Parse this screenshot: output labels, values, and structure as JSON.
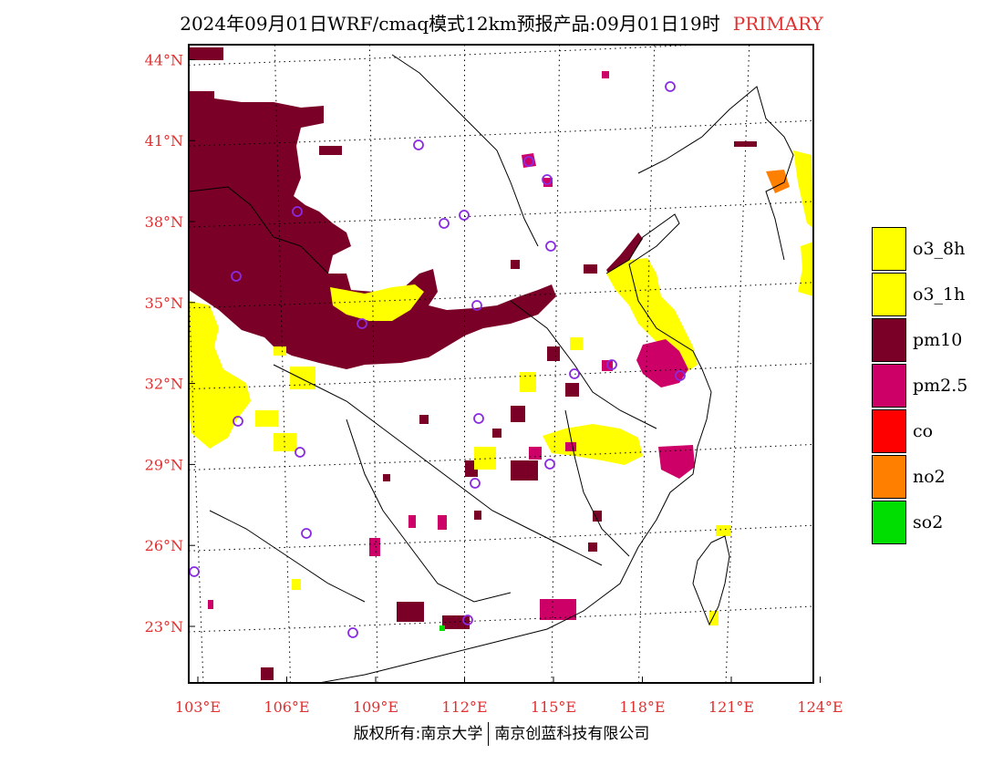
{
  "header": {
    "title": "2024年09月01日WRF/cmaq模式12km预报产品:09月01日19时",
    "tag": "PRIMARY"
  },
  "map": {
    "lat_ticks": [
      {
        "value": 44,
        "label": "44°N"
      },
      {
        "value": 41,
        "label": "41°N"
      },
      {
        "value": 38,
        "label": "38°N"
      },
      {
        "value": 35,
        "label": "35°N"
      },
      {
        "value": 32,
        "label": "32°N"
      },
      {
        "value": 29,
        "label": "29°N"
      },
      {
        "value": 26,
        "label": "26°N"
      },
      {
        "value": 23,
        "label": "23°N"
      }
    ],
    "lon_ticks": [
      {
        "value": 103,
        "label": "103°E"
      },
      {
        "value": 106,
        "label": "106°E"
      },
      {
        "value": 109,
        "label": "109°E"
      },
      {
        "value": 112,
        "label": "112°E"
      },
      {
        "value": 115,
        "label": "115°E"
      },
      {
        "value": 118,
        "label": "118°E"
      },
      {
        "value": 121,
        "label": "121°E"
      },
      {
        "value": 124,
        "label": "124°E"
      }
    ],
    "label_color": "#e03030",
    "grid_style": "dotted"
  },
  "legend": {
    "items": [
      {
        "label": "o3_8h",
        "color": "#ffff00"
      },
      {
        "label": "o3_1h",
        "color": "#ffff00"
      },
      {
        "label": "pm10",
        "color": "#7a0027"
      },
      {
        "label": "pm2.5",
        "color": "#cc0066"
      },
      {
        "label": "co",
        "color": "#ff0000"
      },
      {
        "label": "no2",
        "color": "#ff8000"
      },
      {
        "label": "so2",
        "color": "#00dd00"
      }
    ]
  },
  "footer": {
    "copyright_left": "版权所有:南京大学",
    "copyright_right": "南京创蓝科技有限公司"
  }
}
